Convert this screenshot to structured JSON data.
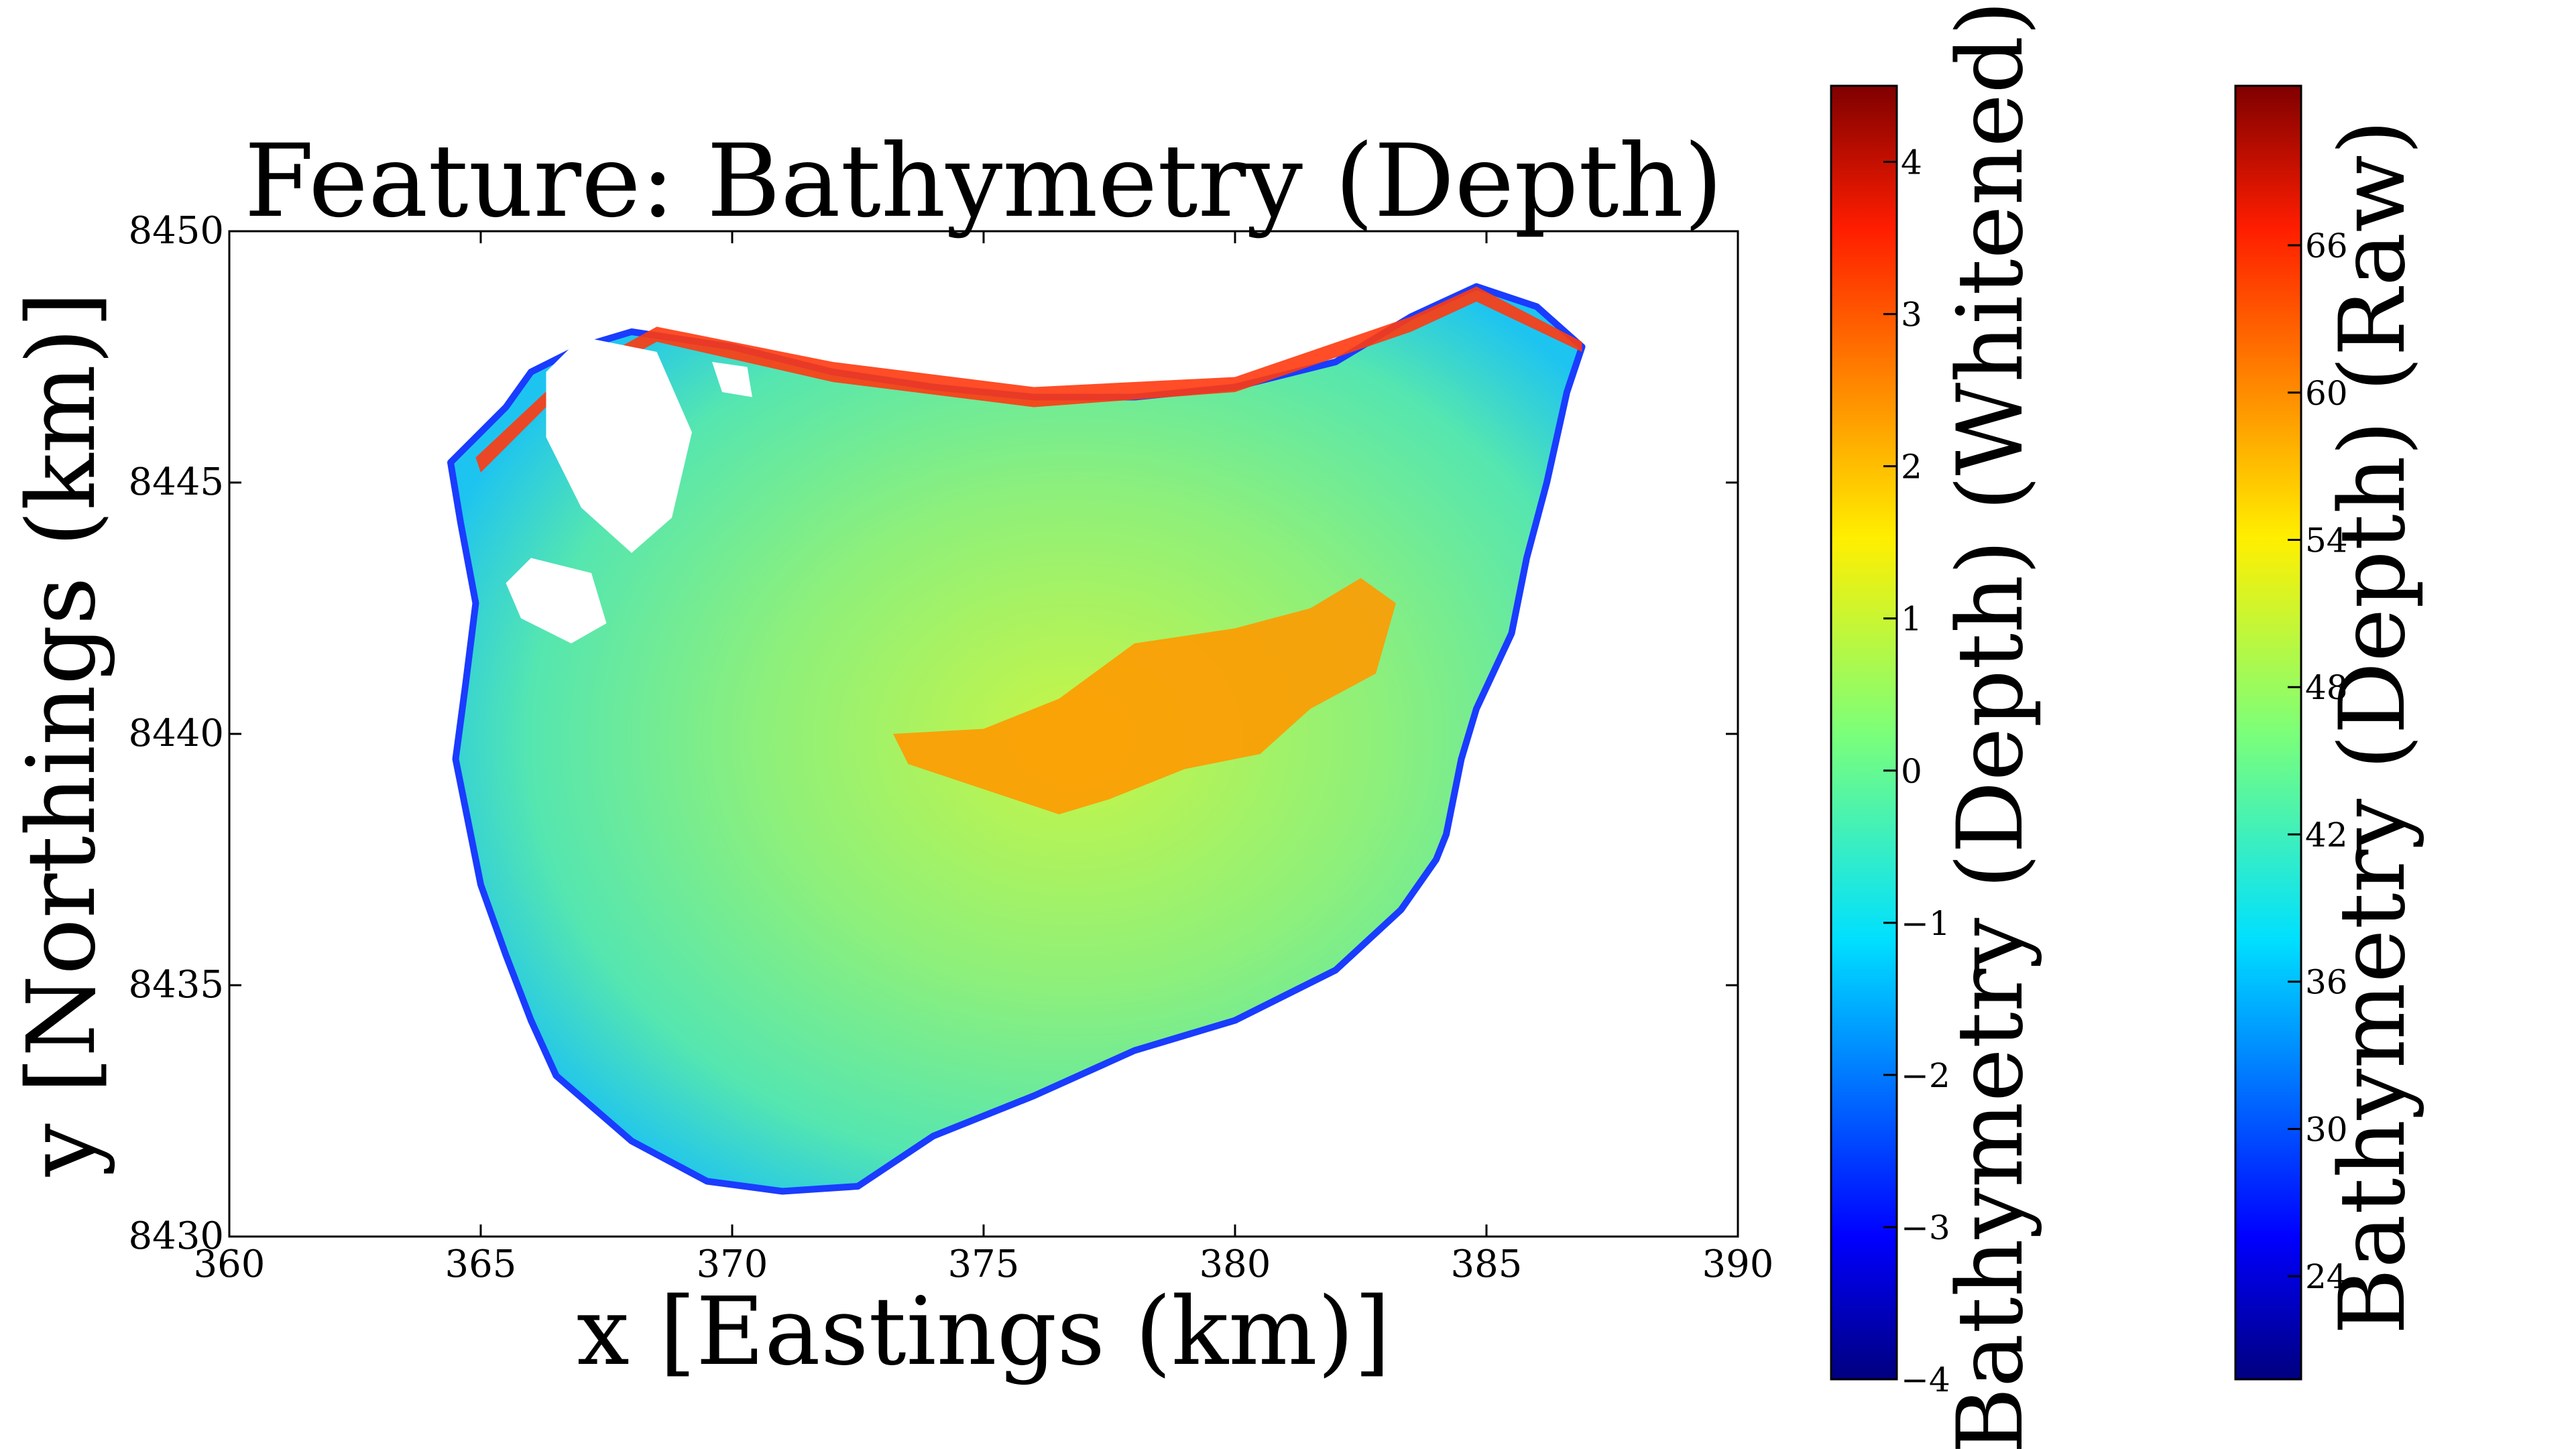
{
  "chart_data": {
    "type": "heatmap",
    "title": "Feature: Bathymetry (Depth)",
    "xlabel": "x [Eastings (km)]",
    "ylabel": "y [Northings (km)]",
    "xlim": [
      360,
      390
    ],
    "ylim": [
      8430,
      8450
    ],
    "xticks": [
      "360",
      "365",
      "370",
      "375",
      "380",
      "385",
      "390"
    ],
    "yticks": [
      "8430",
      "8435",
      "8440",
      "8445",
      "8450"
    ],
    "colormap": "jet",
    "grid": false,
    "outline_x": [
      364.4,
      365.5,
      366.0,
      367.0,
      368.0,
      370.0,
      372.0,
      374.0,
      376.0,
      378.0,
      380.0,
      382.0,
      383.5,
      384.8,
      386.0,
      386.9,
      386.6,
      386.2,
      385.8,
      385.5,
      384.8,
      384.5,
      384.2,
      384.0,
      383.3,
      382.0,
      380.0,
      378.0,
      376.0,
      374.0,
      372.5,
      371.0,
      369.5,
      368.0,
      366.5,
      366.0,
      365.5,
      365.0,
      364.7,
      364.5,
      364.7,
      364.9,
      364.6
    ],
    "outline_y": [
      8445.4,
      8446.5,
      8447.2,
      8447.7,
      8448.0,
      8447.7,
      8447.2,
      8446.9,
      8446.7,
      8446.7,
      8446.9,
      8447.4,
      8448.3,
      8448.9,
      8448.5,
      8447.7,
      8446.8,
      8445.0,
      8443.5,
      8442.0,
      8440.5,
      8439.5,
      8438.0,
      8437.5,
      8436.5,
      8435.3,
      8434.3,
      8433.7,
      8432.8,
      8432.0,
      8431.0,
      8430.9,
      8431.1,
      8431.9,
      8433.2,
      8434.3,
      8435.6,
      8437.0,
      8438.5,
      8439.5,
      8441.0,
      8442.6,
      8444.2
    ],
    "regions": [
      {
        "level": "high-ridge",
        "x": [
          373.2,
          375.0,
          376.5,
          378.0,
          380.0,
          381.5,
          382.5,
          383.2,
          382.8,
          381.5,
          380.5,
          379.0,
          377.5,
          376.5,
          375.0,
          373.5
        ],
        "y": [
          8440.0,
          8440.1,
          8440.7,
          8441.8,
          8442.1,
          8442.5,
          8443.1,
          8442.6,
          8441.2,
          8440.5,
          8439.6,
          8439.3,
          8438.7,
          8438.4,
          8438.9,
          8439.4
        ]
      },
      {
        "level": "shallow-edge",
        "x": [
          364.9,
          366.5,
          368.5,
          372.0,
          376.0,
          380.0,
          383.5,
          384.8,
          386.9,
          386.9,
          384.8,
          383.5,
          380.0,
          376.0,
          372.0,
          368.5,
          366.5,
          365.0
        ],
        "y": [
          8445.5,
          8447.0,
          8448.1,
          8447.4,
          8446.9,
          8447.1,
          8448.3,
          8448.9,
          8447.8,
          8447.6,
          8448.6,
          8448.0,
          8446.8,
          8446.5,
          8447.0,
          8447.8,
          8446.7,
          8445.2
        ]
      }
    ],
    "holes": [
      {
        "x": [
          367.0,
          368.5,
          369.2,
          368.8,
          368.0,
          367.0,
          366.3,
          366.3
        ],
        "y": [
          8447.9,
          8447.6,
          8446.0,
          8444.3,
          8443.6,
          8444.5,
          8445.9,
          8447.2
        ]
      },
      {
        "x": [
          366.0,
          367.2,
          367.5,
          366.8,
          365.8,
          365.5
        ],
        "y": [
          8443.5,
          8443.2,
          8442.2,
          8441.8,
          8442.3,
          8443.0
        ]
      },
      {
        "x": [
          369.6,
          370.3,
          370.4,
          369.8
        ],
        "y": [
          8447.4,
          8447.3,
          8446.7,
          8446.8
        ]
      }
    ],
    "colorbars": [
      {
        "label": "Bathymetry (Depth) (Whitened)",
        "ticks": [
          "−4",
          "−3",
          "−2",
          "−1",
          "0",
          "1",
          "2",
          "3",
          "4"
        ],
        "range": [
          -4.0,
          4.5
        ]
      },
      {
        "label": "Bathymetry (Depth) (Raw)",
        "ticks": [
          "24",
          "30",
          "36",
          "42",
          "48",
          "54",
          "60",
          "66"
        ],
        "range": [
          19.8,
          72.5
        ]
      }
    ]
  }
}
